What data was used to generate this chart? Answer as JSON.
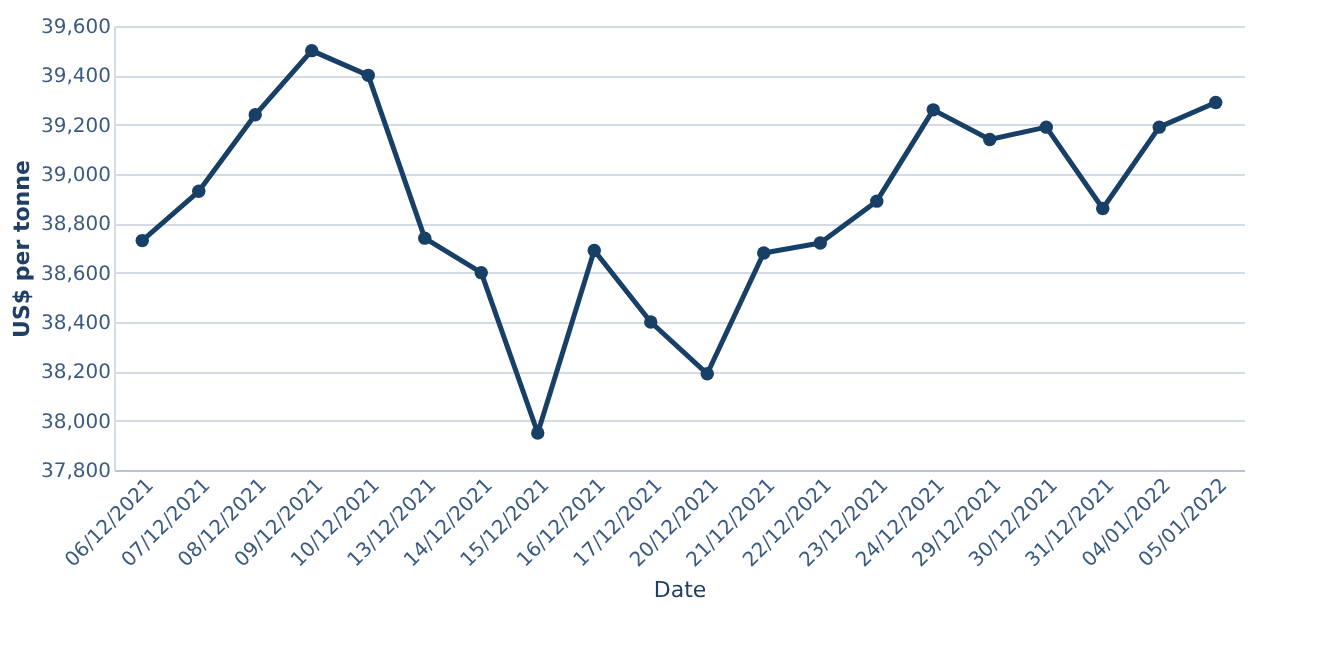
{
  "chart_data": {
    "type": "line",
    "xlabel": "Date",
    "ylabel": "US$ per tonne",
    "categories": [
      "06/12/2021",
      "07/12/2021",
      "08/12/2021",
      "09/12/2021",
      "10/12/2021",
      "13/12/2021",
      "14/12/2021",
      "15/12/2021",
      "16/12/2021",
      "17/12/2021",
      "20/12/2021",
      "21/12/2021",
      "22/12/2021",
      "23/12/2021",
      "24/12/2021",
      "29/12/2021",
      "30/12/2021",
      "31/12/2021",
      "04/01/2022",
      "05/01/2022"
    ],
    "series": [
      {
        "color": "#183f66",
        "values": [
          38730,
          38930,
          39240,
          39500,
          39400,
          38740,
          38600,
          37950,
          38690,
          38400,
          38190,
          38680,
          38720,
          38890,
          39260,
          39140,
          39190,
          38860,
          39190,
          39290
        ]
      }
    ],
    "ylim": [
      37800,
      39600
    ],
    "yticks": [
      {
        "value": 37800,
        "label": "37,800"
      },
      {
        "value": 38000,
        "label": "38,000"
      },
      {
        "value": 38200,
        "label": "38,200"
      },
      {
        "value": 38400,
        "label": "38,400"
      },
      {
        "value": 38600,
        "label": "38,600"
      },
      {
        "value": 38800,
        "label": "38,800"
      },
      {
        "value": 39000,
        "label": "39,000"
      },
      {
        "value": 39200,
        "label": "39,200"
      },
      {
        "value": 39400,
        "label": "39,400"
      },
      {
        "value": 39600,
        "label": "39,600"
      }
    ],
    "grid": "y",
    "marker": "circle",
    "line_style": "solid"
  }
}
